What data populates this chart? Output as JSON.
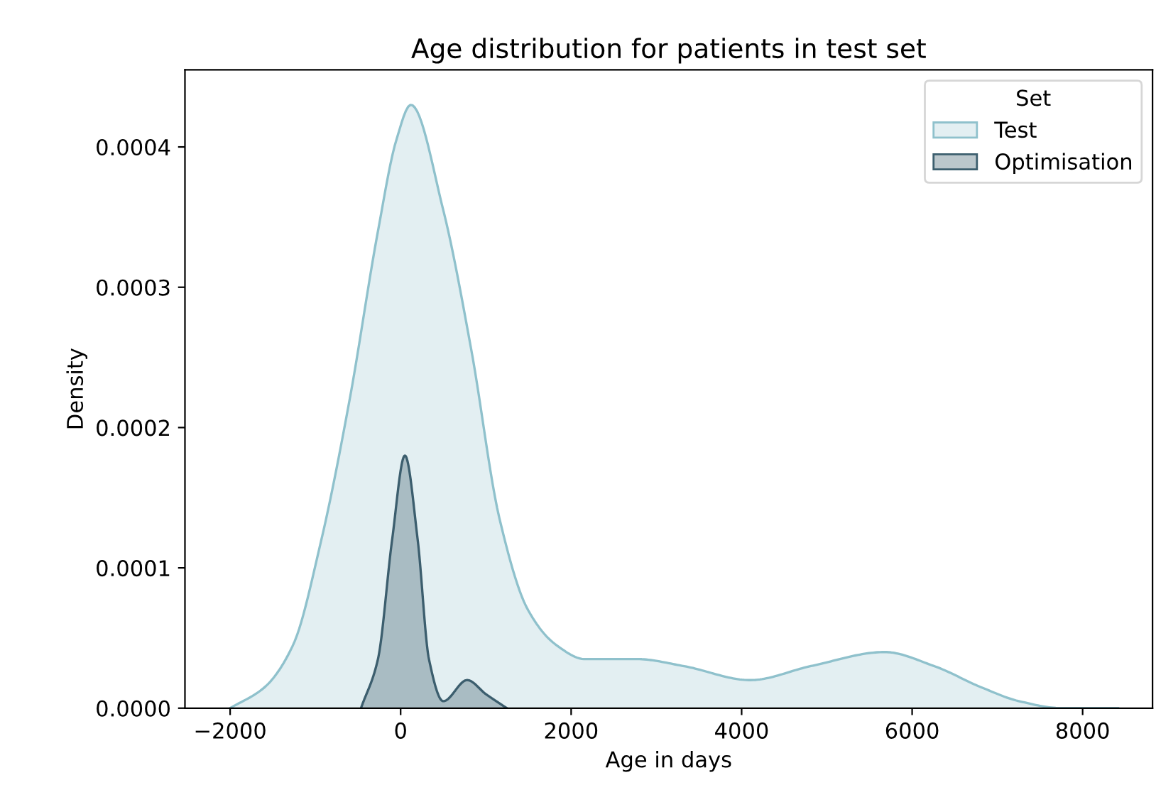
{
  "chart_data": {
    "type": "area",
    "title": "Age distribution for patients in test set",
    "xlabel": "Age in days",
    "ylabel": "Density",
    "legend_title": "Set",
    "legend": "top right",
    "xlim": [
      -2530,
      8820
    ],
    "xticks": [
      -2000,
      0,
      2000,
      4000,
      6000,
      8000
    ],
    "ylim": [
      0,
      0.000455
    ],
    "yticks": [
      {
        "value": 0,
        "label": "0.0000"
      },
      {
        "value": 0.0001,
        "label": "0.0001"
      },
      {
        "value": 0.0002,
        "label": "0.0002"
      },
      {
        "value": 0.0003,
        "label": "0.0003"
      },
      {
        "value": 0.0004,
        "label": "0.0004"
      }
    ],
    "series": [
      {
        "name": "Test",
        "color": "#8fc1cc",
        "x": [
          -2000,
          -1594,
          -1262,
          -930,
          -598,
          -266,
          -50,
          120,
          500,
          830,
          1160,
          1494,
          1826,
          2158,
          2772,
          3320,
          4100,
          4814,
          5677,
          6258,
          6806,
          7254,
          7752,
          8416
        ],
        "values": [
          0,
          1.5e-05,
          4.5e-05,
          0.00012,
          0.00022,
          0.00034,
          0.000405,
          0.00043,
          0.000355,
          0.000255,
          0.000135,
          7e-05,
          4.5e-05,
          3.5e-05,
          3.5e-05,
          3e-05,
          2e-05,
          3e-05,
          4e-05,
          3e-05,
          1.5e-05,
          5e-06,
          0,
          0
        ]
      },
      {
        "name": "Optimisation",
        "color": "#3c5e6e",
        "x": [
          -465,
          -266,
          -100,
          50,
          200,
          332,
          500,
          780,
          1000,
          1245
        ],
        "values": [
          0,
          3.5e-05,
          0.00012,
          0.00018,
          0.00012,
          3.5e-05,
          5e-06,
          2e-05,
          1e-05,
          0
        ]
      }
    ]
  }
}
